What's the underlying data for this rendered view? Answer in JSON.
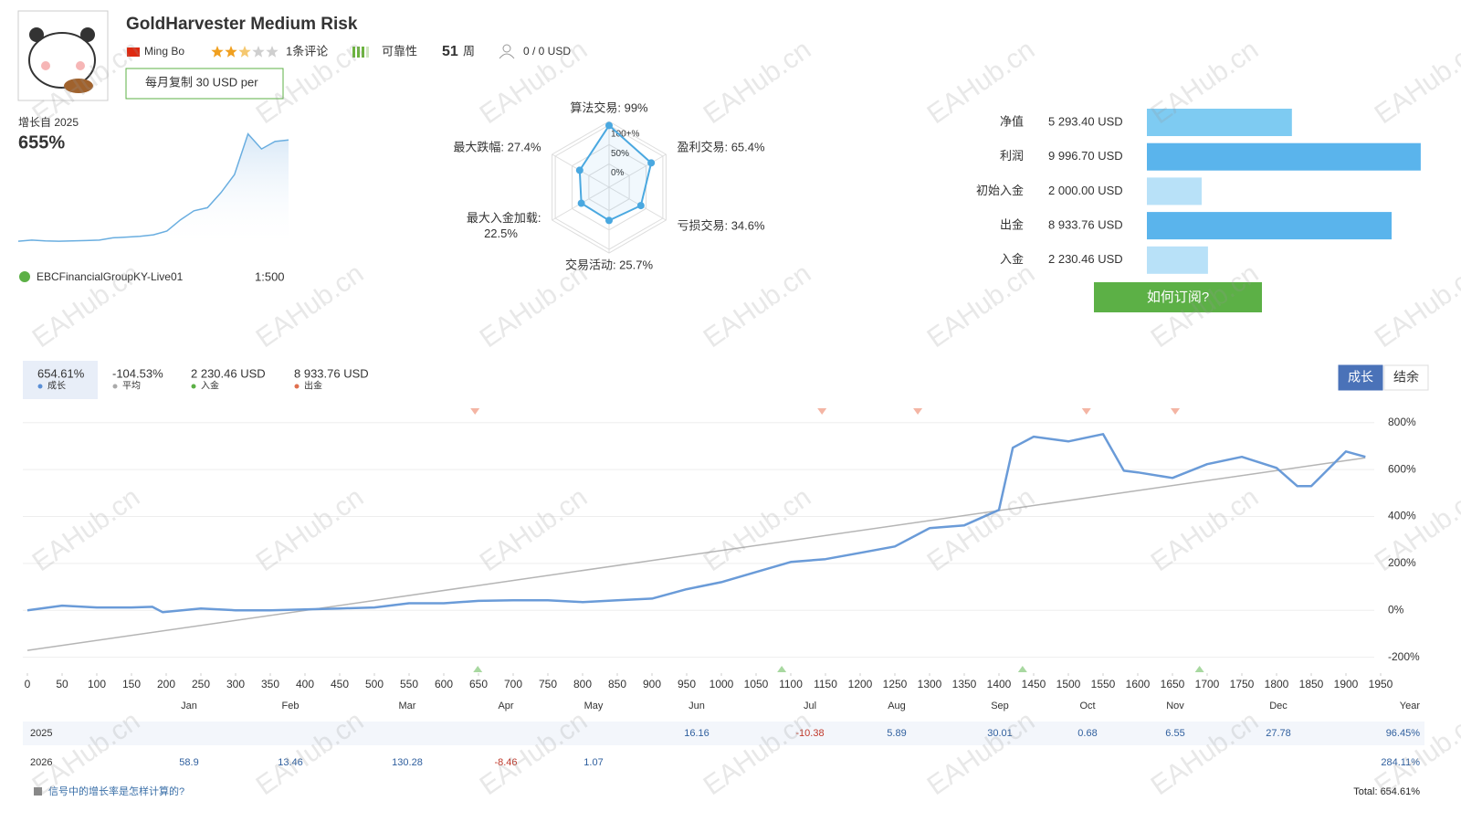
{
  "header": {
    "title": "GoldHarvester Medium Risk",
    "author": "Ming Bo",
    "rating": 2.5,
    "reviews": "1条评论",
    "reliability": "可靠性",
    "weeks": 51,
    "weeks_unit": "周",
    "subscribers": "0 / 0 USD",
    "copy_button": "每月复制 30 USD per",
    "growth_since": "增长自 2025",
    "growth": "655%",
    "account": "EBCFinancialGroupKY-Live01",
    "leverage": "1:500"
  },
  "watermark": "EAHub.cn",
  "subscribe_button": "如何订阅?",
  "summary": [
    {
      "value": "654.61%",
      "label": "成长",
      "color": "#5b8fd6"
    },
    {
      "value": "-104.53%",
      "label": "平均",
      "color": "#aaaaaa"
    },
    {
      "value": "2 230.46 USD",
      "label": "入金",
      "color": "#5cb046"
    },
    {
      "value": "8 933.76 USD",
      "label": "出金",
      "color": "#e0704f"
    }
  ],
  "tabs": [
    "成长",
    "结余"
  ],
  "chart_data": [
    {
      "type": "area",
      "values": [
        28,
        35,
        30,
        28,
        30,
        32,
        35,
        50,
        55,
        60,
        70,
        95,
        170,
        230,
        250,
        350,
        470,
        740,
        640,
        690,
        700
      ],
      "ylim": [
        -20,
        780
      ],
      "color": "#6aaee0"
    },
    {
      "type": "radar",
      "categories": [
        "算法交易: 99%",
        "盈利交易: 65.4%",
        "亏损交易: 34.6%",
        "交易活动: 25.7%",
        "最大入金加载:\n22.5%",
        "最大跌幅: 27.4%"
      ],
      "values": [
        99,
        65.4,
        34.6,
        25.7,
        22.5,
        27.4
      ],
      "rlim": [
        -60,
        100
      ],
      "rticks": [
        {
          "value": 100,
          "label": "100+%"
        },
        {
          "value": 50,
          "label": "50%"
        },
        {
          "value": 0,
          "label": "0%"
        }
      ],
      "color": "#4aa8e0"
    },
    {
      "type": "hbar",
      "categories": [
        "净值",
        "利润",
        "初始入金",
        "出金",
        "入金"
      ],
      "values": [
        5293.4,
        9996.7,
        2000,
        8933.76,
        2230.46
      ],
      "value_labels": [
        "5 293.40 USD",
        "9 996.70 USD",
        "2 000.00 USD",
        "8 933.76 USD",
        "2 230.46 USD"
      ],
      "colors": [
        "#7ecbf2",
        "#5ab4ec",
        "#b8e1f8",
        "#5ab4ec",
        "#b8e1f8"
      ],
      "xlim": [
        0,
        10000
      ]
    },
    {
      "type": "line",
      "series": [
        {
          "name": "成长",
          "color": "#6a9bd8",
          "x": [
            0,
            50,
            100,
            150,
            180,
            195,
            250,
            300,
            350,
            400,
            450,
            500,
            550,
            600,
            650,
            700,
            750,
            800,
            850,
            900,
            950,
            1000,
            1050,
            1100,
            1150,
            1200,
            1250,
            1300,
            1350,
            1400,
            1420,
            1450,
            1500,
            1550,
            1580,
            1600,
            1650,
            1700,
            1750,
            1800,
            1830,
            1850,
            1900,
            1928
          ],
          "values": [
            0,
            20,
            12,
            12,
            15,
            -8,
            8,
            0,
            0,
            4,
            8,
            12,
            30,
            30,
            40,
            43,
            43,
            35,
            43,
            50,
            90,
            120,
            163,
            206,
            218,
            245,
            272,
            350,
            362,
            428,
            693,
            740,
            720,
            751,
            595,
            588,
            564,
            623,
            654,
            607,
            529,
            529,
            677,
            654
          ]
        }
      ],
      "trend": {
        "x": [
          0,
          1928
        ],
        "values": [
          -171,
          650
        ],
        "color": "#b5b5b5"
      },
      "withdrawals_x": [
        645,
        1145,
        1283,
        1526,
        1654
      ],
      "deposits_x": [
        649,
        1087,
        1434,
        1689
      ],
      "xlim": [
        0,
        1950
      ],
      "xticks": [
        0,
        50,
        100,
        150,
        200,
        250,
        300,
        350,
        400,
        450,
        500,
        550,
        600,
        650,
        700,
        750,
        800,
        850,
        900,
        950,
        1000,
        1050,
        1100,
        1150,
        1200,
        1250,
        1300,
        1350,
        1400,
        1450,
        1500,
        1550,
        1600,
        1650,
        1700,
        1750,
        1800,
        1850,
        1900,
        1950
      ],
      "ylim": [
        -260,
        830
      ],
      "yticks": [
        {
          "value": -200,
          "label": "-200%"
        },
        {
          "value": 0,
          "label": "0%"
        },
        {
          "value": 200,
          "label": "200%"
        },
        {
          "value": 400,
          "label": "400%"
        },
        {
          "value": 600,
          "label": "600%"
        },
        {
          "value": 800,
          "label": "800%"
        }
      ],
      "grid": true
    }
  ],
  "table": {
    "columns": [
      "Jan",
      "Feb",
      "Mar",
      "Apr",
      "May",
      "Jun",
      "Jul",
      "Aug",
      "Sep",
      "Oct",
      "Nov",
      "Dec",
      "Year"
    ],
    "rows": [
      {
        "label": "2025",
        "cells": [
          null,
          null,
          null,
          null,
          null,
          16.16,
          -10.38,
          5.89,
          30.01,
          0.68,
          6.55,
          27.78,
          "96.45%"
        ]
      },
      {
        "label": "2026",
        "cells": [
          58.9,
          13.46,
          130.28,
          -8.46,
          1.07,
          null,
          null,
          null,
          null,
          null,
          null,
          null,
          "284.11%"
        ]
      }
    ],
    "footer_link": "信号中的增长率是怎样计算的?",
    "total": "Total: 654.61%"
  }
}
